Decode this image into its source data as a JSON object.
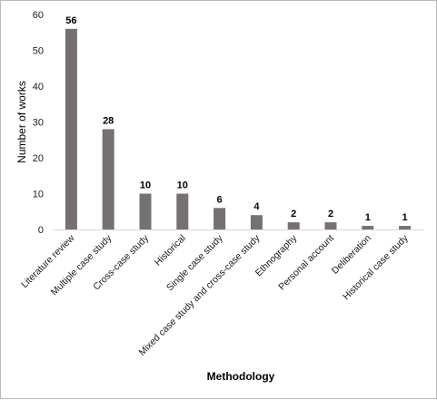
{
  "chart_data": {
    "type": "bar",
    "categories": [
      "Literature review",
      "Multiple case study",
      "Cross-case study",
      "Historical",
      "Single case study",
      "Mixed case study and cross-case study",
      "Ethnography",
      "Personal account",
      "Deliberation",
      "Historical case study"
    ],
    "values": [
      56,
      28,
      10,
      10,
      6,
      4,
      2,
      2,
      1,
      1
    ],
    "data_labels": [
      "56",
      "28",
      "10",
      "10",
      "6",
      "4",
      "2",
      "2",
      "1",
      "1"
    ],
    "xlabel": "Methodology",
    "ylabel": "Number of works",
    "ylim": [
      0,
      60
    ],
    "yticks": [
      "0",
      "10",
      "20",
      "30",
      "40",
      "50",
      "60"
    ],
    "grid": false,
    "legend": "none",
    "bar_color": "#767171"
  }
}
